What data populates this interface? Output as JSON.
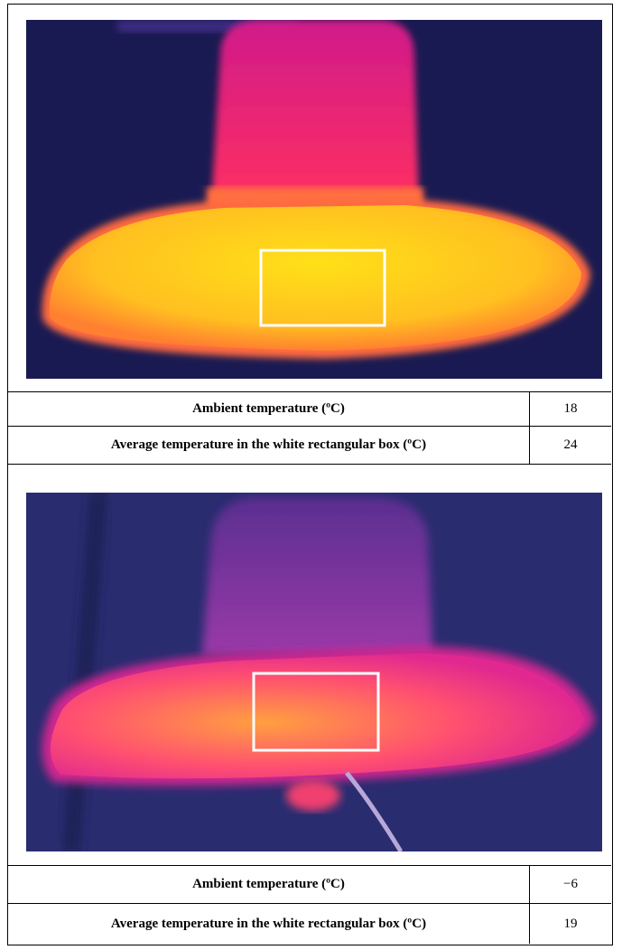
{
  "panels": [
    {
      "rows": [
        [
          "Ambient temperature (ºC)",
          "18"
        ],
        [
          "Average temperature in the white rectangular box (ºC)",
          "24"
        ]
      ]
    },
    {
      "rows": [
        [
          "Ambient temperature (ºC)",
          "−6"
        ],
        [
          "Average temperature in the white rectangular box (ºC)",
          "19"
        ]
      ]
    }
  ]
}
